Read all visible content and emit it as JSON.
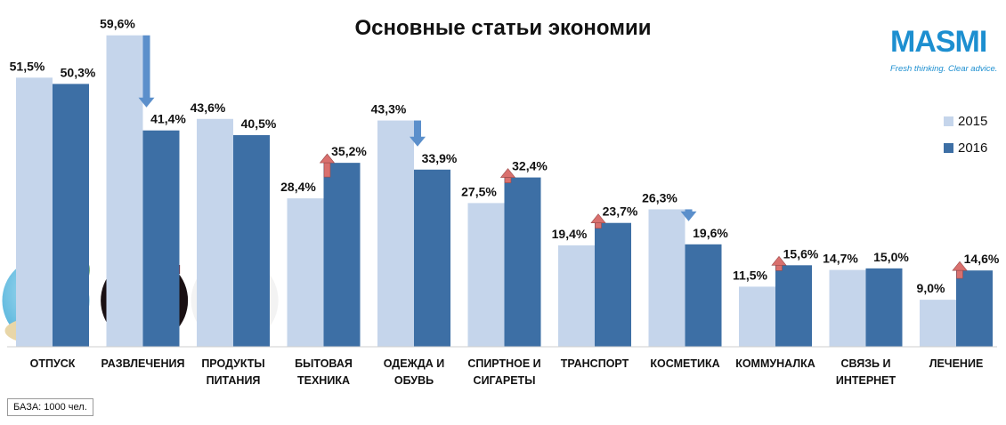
{
  "chart_data": {
    "type": "bar",
    "title": "Основные статьи экономии",
    "categories": [
      [
        "ОТПУСК"
      ],
      [
        "РАЗВЛЕЧЕНИЯ"
      ],
      [
        "ПРОДУКТЫ",
        "ПИТАНИЯ"
      ],
      [
        "БЫТОВАЯ",
        "ТЕХНИКА"
      ],
      [
        "ОДЕЖДА И",
        "ОБУВЬ"
      ],
      [
        "СПИРТНОЕ И",
        "СИГАРЕТЫ"
      ],
      [
        "ТРАНСПОРТ"
      ],
      [
        "КОСМЕТИКА"
      ],
      [
        "КОММУНАЛКА"
      ],
      [
        "СВЯЗЬ И",
        "ИНТЕРНЕТ"
      ],
      [
        "ЛЕЧЕНИЕ"
      ]
    ],
    "series": [
      {
        "name": "2015",
        "color": "#c5d5eb",
        "values": [
          51.5,
          59.6,
          43.6,
          28.4,
          43.3,
          27.5,
          19.4,
          26.3,
          11.5,
          14.7,
          9.0
        ],
        "labels": [
          "51,5%",
          "59,6%",
          "43,6%",
          "28,4%",
          "43,3%",
          "27,5%",
          "19,4%",
          "26,3%",
          "11,5%",
          "14,7%",
          "9,0%"
        ]
      },
      {
        "name": "2016",
        "color": "#3d6fa5",
        "values": [
          50.3,
          41.4,
          40.5,
          35.2,
          33.9,
          32.4,
          23.7,
          19.6,
          15.6,
          15.0,
          14.6
        ],
        "labels": [
          "50,3%",
          "41,4%",
          "40,5%",
          "35,2%",
          "33,9%",
          "32,4%",
          "23,7%",
          "19,6%",
          "15,6%",
          "15,0%",
          "14,6%"
        ]
      }
    ],
    "trend_arrows": [
      "none",
      "down",
      "none",
      "up",
      "down",
      "up",
      "up",
      "down",
      "up",
      "none",
      "up"
    ],
    "arrow_colors": {
      "up": "#d9706e",
      "down": "#5b8fcb"
    },
    "ylim": [
      0,
      65
    ],
    "grid": false,
    "legend_position": "right"
  },
  "logo": {
    "text": "MASMI",
    "tagline": "Fresh thinking. Clear advice."
  },
  "base_note": "БАЗА: 1000 чел."
}
